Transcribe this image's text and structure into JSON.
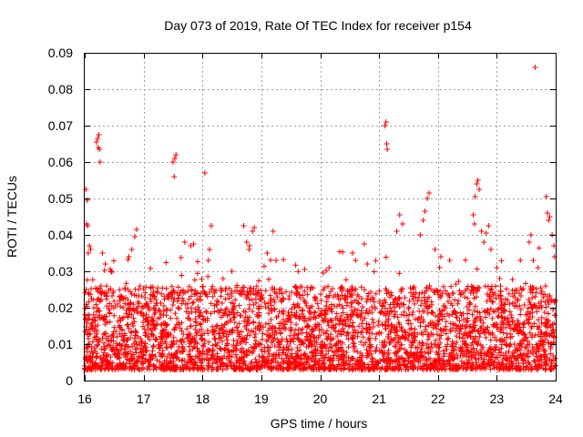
{
  "chart_data": {
    "type": "scatter",
    "title": "Day 073 of 2019, Rate Of TEC Index for receiver p154",
    "xlabel": "GPS time / hours",
    "ylabel": "ROTI / TECUs",
    "xlim": [
      16,
      24
    ],
    "ylim": [
      0,
      0.09
    ],
    "x_ticks": [
      "16",
      "17",
      "18",
      "19",
      "20",
      "21",
      "22",
      "23",
      "24"
    ],
    "x_tick_values": [
      16,
      17,
      18,
      19,
      20,
      21,
      22,
      23,
      24
    ],
    "y_ticks": [
      "0",
      "0.01",
      "0.02",
      "0.03",
      "0.04",
      "0.05",
      "0.06",
      "0.07",
      "0.08",
      "0.09"
    ],
    "y_tick_values": [
      0,
      0.01,
      0.02,
      0.03,
      0.04,
      0.05,
      0.06,
      0.07,
      0.08,
      0.09
    ],
    "grid": true,
    "marker": "plus",
    "series": [
      {
        "name": "p154",
        "color": "#ff0000",
        "note": "Dense scatter of ~3600 ROTI samples; bulk between 0.003 and 0.025 TECU/s. Notable peaks listed in 'points'.",
        "background_seed": 154,
        "background_count": 3600,
        "background_range": [
          0.003,
          0.026
        ],
        "points": [
          [
            16.02,
            0.0525
          ],
          [
            16.04,
            0.0495
          ],
          [
            16.03,
            0.043
          ],
          [
            16.05,
            0.0425
          ],
          [
            16.08,
            0.037
          ],
          [
            16.1,
            0.036
          ],
          [
            16.06,
            0.035
          ],
          [
            16.2,
            0.0655
          ],
          [
            16.22,
            0.0665
          ],
          [
            16.24,
            0.0675
          ],
          [
            16.23,
            0.064
          ],
          [
            16.25,
            0.0635
          ],
          [
            16.26,
            0.06
          ],
          [
            16.3,
            0.035
          ],
          [
            16.35,
            0.032
          ],
          [
            16.45,
            0.03
          ],
          [
            16.75,
            0.034
          ],
          [
            16.8,
            0.036
          ],
          [
            16.85,
            0.0395
          ],
          [
            16.88,
            0.0415
          ],
          [
            17.5,
            0.06
          ],
          [
            17.53,
            0.061
          ],
          [
            17.55,
            0.062
          ],
          [
            17.52,
            0.056
          ],
          [
            17.7,
            0.038
          ],
          [
            17.8,
            0.037
          ],
          [
            17.85,
            0.0375
          ],
          [
            18.04,
            0.057
          ],
          [
            18.1,
            0.033
          ],
          [
            18.15,
            0.0425
          ],
          [
            18.12,
            0.036
          ],
          [
            18.35,
            0.028
          ],
          [
            18.5,
            0.03
          ],
          [
            18.7,
            0.0425
          ],
          [
            18.75,
            0.038
          ],
          [
            18.8,
            0.037
          ],
          [
            18.85,
            0.041
          ],
          [
            18.88,
            0.042
          ],
          [
            19.1,
            0.035
          ],
          [
            19.2,
            0.041
          ],
          [
            19.25,
            0.033
          ],
          [
            20.05,
            0.0295
          ],
          [
            20.15,
            0.031
          ],
          [
            20.55,
            0.035
          ],
          [
            20.6,
            0.033
          ],
          [
            20.75,
            0.0375
          ],
          [
            20.8,
            0.032
          ],
          [
            21.1,
            0.07
          ],
          [
            21.12,
            0.071
          ],
          [
            21.13,
            0.065
          ],
          [
            21.14,
            0.0635
          ],
          [
            21.3,
            0.041
          ],
          [
            21.35,
            0.0455
          ],
          [
            21.4,
            0.043
          ],
          [
            21.7,
            0.04
          ],
          [
            21.75,
            0.044
          ],
          [
            21.78,
            0.0465
          ],
          [
            21.82,
            0.05
          ],
          [
            21.85,
            0.0515
          ],
          [
            21.95,
            0.036
          ],
          [
            22.05,
            0.034
          ],
          [
            22.2,
            0.033
          ],
          [
            22.6,
            0.0455
          ],
          [
            22.63,
            0.0505
          ],
          [
            22.66,
            0.054
          ],
          [
            22.68,
            0.055
          ],
          [
            22.7,
            0.0525
          ],
          [
            22.62,
            0.043
          ],
          [
            22.74,
            0.041
          ],
          [
            22.78,
            0.038
          ],
          [
            22.82,
            0.0405
          ],
          [
            22.86,
            0.0425
          ],
          [
            22.9,
            0.036
          ],
          [
            23.0,
            0.031
          ],
          [
            23.05,
            0.028
          ],
          [
            23.4,
            0.033
          ],
          [
            23.55,
            0.038
          ],
          [
            23.58,
            0.04
          ],
          [
            23.65,
            0.086
          ],
          [
            23.62,
            0.033
          ],
          [
            23.7,
            0.031
          ],
          [
            23.84,
            0.0505
          ],
          [
            23.86,
            0.046
          ],
          [
            23.88,
            0.044
          ],
          [
            23.9,
            0.045
          ],
          [
            23.94,
            0.04
          ],
          [
            23.97,
            0.037
          ],
          [
            23.98,
            0.034
          ]
        ]
      }
    ]
  }
}
